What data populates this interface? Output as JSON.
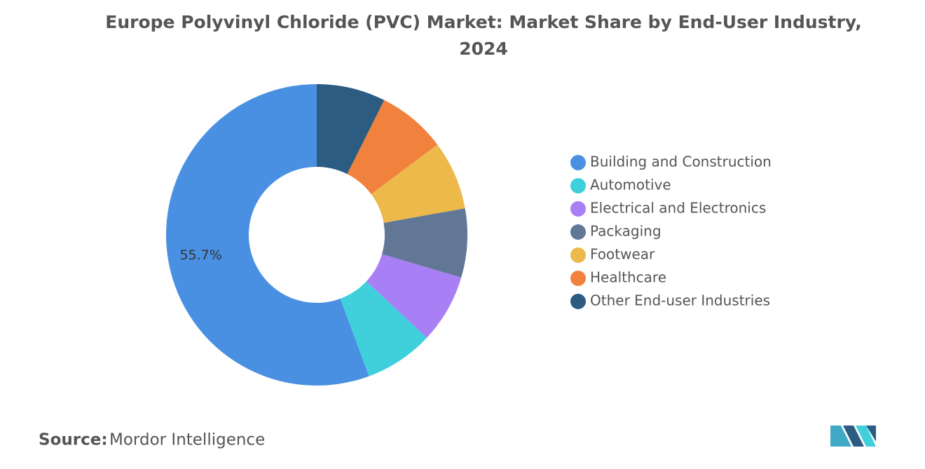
{
  "chart_data": {
    "type": "donut",
    "title": "Europe Polyvinyl Chloride (PVC) Market: Market Share by End-User Industry, 2024",
    "categories": [
      "Building and Construction",
      "Automotive",
      "Electrical and Electronics",
      "Packaging",
      "Footwear",
      "Healthcare",
      "Other End-user Industries"
    ],
    "values": [
      55.7,
      7.4,
      7.4,
      7.4,
      7.4,
      7.4,
      7.4
    ],
    "value_labels": [
      "55.7%",
      null,
      null,
      null,
      null,
      null,
      null
    ],
    "colors": [
      "#4a90e2",
      "#3fd0dc",
      "#a87ff5",
      "#627796",
      "#ecb94a",
      "#f0823d",
      "#2d5c82"
    ],
    "legend": "right"
  },
  "source": {
    "label": "Source:",
    "text": "Mordor Intelligence"
  }
}
